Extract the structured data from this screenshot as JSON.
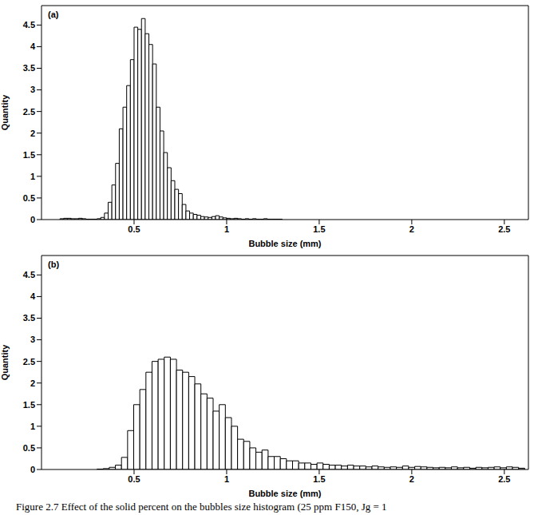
{
  "chart_data": [
    {
      "type": "histogram",
      "annotation": "(a)",
      "x_label": "Bubble size (mm)",
      "y_label": "Quantity",
      "color": "#000000",
      "bins": [
        0.1,
        0.12,
        0.14,
        0.16,
        0.18,
        0.2,
        0.22,
        0.24,
        0.26,
        0.28,
        0.3,
        0.32,
        0.34,
        0.36,
        0.38,
        0.4,
        0.42,
        0.44,
        0.46,
        0.48,
        0.5,
        0.52,
        0.54,
        0.56,
        0.58,
        0.6,
        0.62,
        0.64,
        0.66,
        0.68,
        0.7,
        0.72,
        0.74,
        0.76,
        0.78,
        0.8,
        0.82,
        0.84,
        0.86,
        0.88,
        0.9,
        0.92,
        0.94,
        0.96,
        0.98,
        1.0,
        1.02,
        1.04,
        1.06,
        1.08,
        1.1,
        1.12,
        1.14,
        1.16,
        1.18,
        1.2,
        1.22,
        1.24,
        1.26,
        1.28,
        1.3
      ],
      "counts": [
        0.02,
        0.03,
        0.03,
        0.02,
        0.02,
        0.03,
        0.02,
        0.01,
        0.01,
        0.01,
        0.02,
        0.05,
        0.15,
        0.4,
        0.8,
        1.3,
        2.1,
        2.6,
        3.1,
        3.7,
        4.45,
        4.4,
        4.65,
        4.3,
        4.05,
        3.6,
        2.6,
        2.05,
        1.55,
        1.2,
        0.9,
        0.7,
        0.6,
        0.35,
        0.2,
        0.15,
        0.12,
        0.1,
        0.07,
        0.06,
        0.05,
        0.07,
        0.09,
        0.06,
        0.04,
        0.03,
        0.02,
        0.03,
        0.02,
        0.01,
        0.02,
        0.01,
        0.02,
        0.01,
        0.01,
        0.02,
        0.01,
        0.01,
        0.01,
        0.01
      ],
      "xlim": [
        0,
        2.63
      ],
      "xticks": [
        0.5,
        1,
        1.5,
        2,
        2.5
      ],
      "ylim": [
        0,
        4.95
      ],
      "yticks": [
        0,
        0.5,
        1,
        1.5,
        2,
        2.5,
        3,
        3.5,
        4,
        4.5
      ]
    },
    {
      "type": "histogram",
      "annotation": "(b)",
      "x_label": "Bubble size (mm)",
      "y_label": "Quantity",
      "color": "#000000",
      "bins": [
        0.3,
        0.333,
        0.366,
        0.399,
        0.432,
        0.465,
        0.498,
        0.531,
        0.564,
        0.597,
        0.63,
        0.663,
        0.696,
        0.729,
        0.762,
        0.795,
        0.828,
        0.861,
        0.894,
        0.927,
        0.96,
        0.993,
        1.026,
        1.059,
        1.092,
        1.125,
        1.158,
        1.191,
        1.224,
        1.257,
        1.29,
        1.323,
        1.356,
        1.389,
        1.422,
        1.455,
        1.488,
        1.521,
        1.554,
        1.587,
        1.62,
        1.653,
        1.686,
        1.719,
        1.752,
        1.785,
        1.818,
        1.851,
        1.884,
        1.917,
        1.95,
        1.983,
        2.016,
        2.049,
        2.082,
        2.115,
        2.148,
        2.181,
        2.214,
        2.247,
        2.28,
        2.313,
        2.346,
        2.379,
        2.412,
        2.445,
        2.478,
        2.511,
        2.544,
        2.577,
        2.61
      ],
      "counts": [
        0.01,
        0.02,
        0.05,
        0.1,
        0.28,
        0.9,
        1.5,
        1.85,
        2.25,
        2.5,
        2.55,
        2.6,
        2.55,
        2.3,
        2.25,
        2.15,
        1.98,
        1.75,
        1.65,
        1.35,
        1.5,
        1.2,
        1.0,
        0.7,
        0.65,
        0.5,
        0.4,
        0.45,
        0.3,
        0.3,
        0.25,
        0.2,
        0.2,
        0.15,
        0.15,
        0.12,
        0.15,
        0.12,
        0.1,
        0.1,
        0.08,
        0.1,
        0.08,
        0.08,
        0.06,
        0.08,
        0.06,
        0.05,
        0.06,
        0.05,
        0.08,
        0.05,
        0.07,
        0.06,
        0.05,
        0.04,
        0.05,
        0.04,
        0.06,
        0.04,
        0.05,
        0.03,
        0.05,
        0.04,
        0.05,
        0.06,
        0.04,
        0.06,
        0.05,
        0.03
      ],
      "xlim": [
        0,
        2.63
      ],
      "xticks": [
        0.5,
        1,
        1.5,
        2,
        2.5
      ],
      "ylim": [
        0,
        4.95
      ],
      "yticks": [
        0,
        0.5,
        1,
        1.5,
        2,
        2.5,
        3,
        3.5,
        4,
        4.5
      ]
    }
  ],
  "caption": "Figure 2.7 Effect of the solid percent on the bubbles size histogram (25 ppm F150, Jg = 1"
}
